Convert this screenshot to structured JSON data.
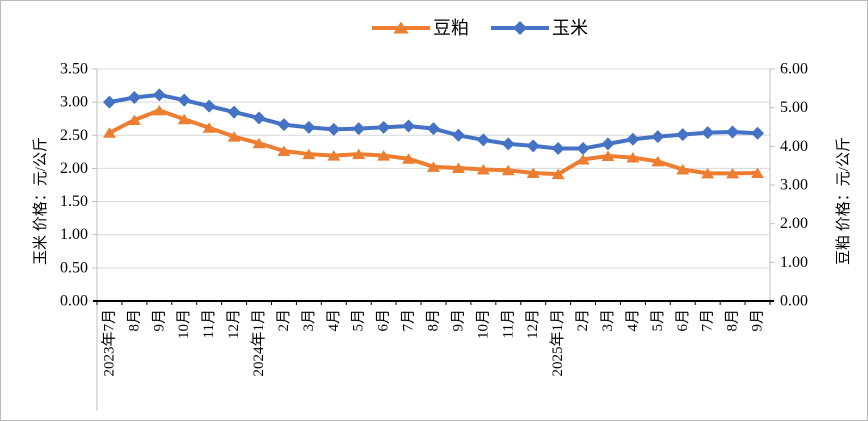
{
  "chart_data": {
    "type": "line",
    "title": "",
    "categories": [
      "2023年7月",
      "8月",
      "9月",
      "10月",
      "11月",
      "12月",
      "2024年1月",
      "2月",
      "3月",
      "4月",
      "5月",
      "6月",
      "7月",
      "8月",
      "9月",
      "10月",
      "11月",
      "12月",
      "2025年1月",
      "2月",
      "3月",
      "4月",
      "5月",
      "6月",
      "7月",
      "8月",
      "9月"
    ],
    "series": [
      {
        "name": "豆粕",
        "axis": "right",
        "color": "#ED7D31",
        "marker": "triangle",
        "values": [
          4.35,
          4.68,
          4.93,
          4.7,
          4.48,
          4.25,
          4.08,
          3.88,
          3.8,
          3.76,
          3.8,
          3.76,
          3.68,
          3.47,
          3.44,
          3.4,
          3.38,
          3.31,
          3.28,
          3.66,
          3.75,
          3.71,
          3.61,
          3.4,
          3.3,
          3.3,
          3.31
        ]
      },
      {
        "name": "玉米",
        "axis": "left",
        "color": "#4472C4",
        "marker": "diamond",
        "values": [
          3.0,
          3.07,
          3.11,
          3.03,
          2.94,
          2.85,
          2.76,
          2.66,
          2.62,
          2.59,
          2.6,
          2.62,
          2.64,
          2.6,
          2.5,
          2.43,
          2.37,
          2.34,
          2.3,
          2.3,
          2.37,
          2.44,
          2.48,
          2.51,
          2.54,
          2.55,
          2.53
        ]
      }
    ],
    "y_left": {
      "title": "玉米 价格：元/公斤",
      "min": 0,
      "max": 3.5,
      "step": 0.5,
      "tick_labels": [
        "0.00",
        "0.50",
        "1.00",
        "1.50",
        "2.00",
        "2.50",
        "3.00",
        "3.50"
      ]
    },
    "y_right": {
      "title": "豆粕 价格：元/公斤",
      "min": 0,
      "max": 6,
      "step": 1,
      "tick_labels": [
        "0.00",
        "1.00",
        "2.00",
        "3.00",
        "4.00",
        "5.00",
        "6.00"
      ]
    },
    "grid": true,
    "legend_position": "top-center",
    "colors": {
      "grid": "#D9D9D9",
      "spine": "#BFBFBF",
      "axis_line": "#000000",
      "text": "#000000"
    }
  }
}
